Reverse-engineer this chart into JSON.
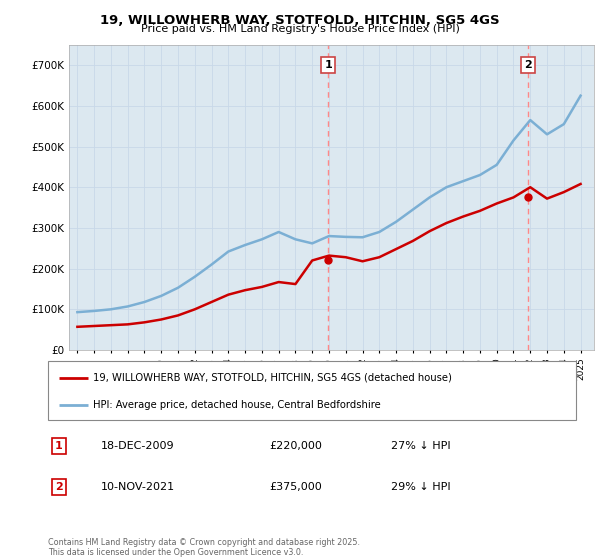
{
  "title": "19, WILLOWHERB WAY, STOTFOLD, HITCHIN, SG5 4GS",
  "subtitle": "Price paid vs. HM Land Registry's House Price Index (HPI)",
  "legend_label_red": "19, WILLOWHERB WAY, STOTFOLD, HITCHIN, SG5 4GS (detached house)",
  "legend_label_blue": "HPI: Average price, detached house, Central Bedfordshire",
  "annotation1_label": "1",
  "annotation1_date": "18-DEC-2009",
  "annotation1_price": "£220,000",
  "annotation1_hpi": "27% ↓ HPI",
  "annotation2_label": "2",
  "annotation2_date": "10-NOV-2021",
  "annotation2_price": "£375,000",
  "annotation2_hpi": "29% ↓ HPI",
  "footer": "Contains HM Land Registry data © Crown copyright and database right 2025.\nThis data is licensed under the Open Government Licence v3.0.",
  "red_color": "#cc0000",
  "blue_color": "#7bafd4",
  "vline_color": "#ff8888",
  "grid_color": "#c8d8e8",
  "chart_bg": "#dce8f0",
  "ylim": [
    0,
    750000
  ],
  "yticks": [
    0,
    100000,
    200000,
    300000,
    400000,
    500000,
    600000,
    700000
  ],
  "ytick_labels": [
    "£0",
    "£100K",
    "£200K",
    "£300K",
    "£400K",
    "£500K",
    "£600K",
    "£700K"
  ],
  "hpi_years": [
    1995,
    1996,
    1997,
    1998,
    1999,
    2000,
    2001,
    2002,
    2003,
    2004,
    2005,
    2006,
    2007,
    2008,
    2009,
    2010,
    2011,
    2012,
    2013,
    2014,
    2015,
    2016,
    2017,
    2018,
    2019,
    2020,
    2021,
    2022,
    2023,
    2024,
    2025
  ],
  "hpi_values": [
    93000,
    96000,
    100000,
    107000,
    118000,
    133000,
    153000,
    180000,
    210000,
    242000,
    258000,
    272000,
    290000,
    272000,
    262000,
    280000,
    278000,
    277000,
    290000,
    315000,
    345000,
    375000,
    400000,
    415000,
    430000,
    455000,
    515000,
    565000,
    530000,
    555000,
    625000
  ],
  "property_years": [
    1995,
    1996,
    1997,
    1998,
    1999,
    2000,
    2001,
    2002,
    2003,
    2004,
    2005,
    2006,
    2007,
    2008,
    2009,
    2010,
    2011,
    2012,
    2013,
    2014,
    2015,
    2016,
    2017,
    2018,
    2019,
    2020,
    2021,
    2022,
    2023,
    2024,
    2025
  ],
  "property_values": [
    57000,
    59000,
    61000,
    63000,
    68000,
    75000,
    85000,
    100000,
    118000,
    136000,
    147000,
    155000,
    167000,
    162000,
    220000,
    232000,
    228000,
    218000,
    228000,
    248000,
    268000,
    292000,
    312000,
    328000,
    342000,
    360000,
    375000,
    400000,
    372000,
    388000,
    408000
  ],
  "point1_x": 2009.96,
  "point1_y": 220000,
  "point2_x": 2021.86,
  "point2_y": 375000,
  "xlim_left": 1994.5,
  "xlim_right": 2025.8
}
